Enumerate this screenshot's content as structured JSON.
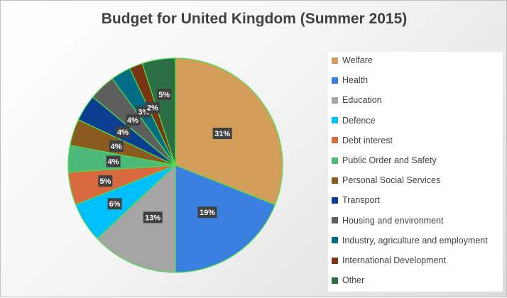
{
  "chart_data": {
    "type": "pie",
    "title": "Budget for United Kingdom (Summer 2015)",
    "categories": [
      "Welfare",
      "Health",
      "Education",
      "Defence",
      "Debt interest",
      "Public Order and Safety",
      "Personal Social Services",
      "Transport",
      "Housing and environment",
      "Industry, agriculture and employment",
      "International Development",
      "Other"
    ],
    "values": [
      31,
      19,
      13,
      6,
      5,
      4,
      4,
      4,
      4,
      3,
      2,
      5
    ],
    "data_labels": [
      "31%",
      "19%",
      "13%",
      "6%",
      "5%",
      "4%",
      "4%",
      "4%",
      "4%",
      "3%",
      "2%",
      "5%"
    ],
    "colors": [
      "#d39d5a",
      "#3b7fe0",
      "#a5a5a5",
      "#00bfff",
      "#d9693e",
      "#4cb87a",
      "#8a5a1e",
      "#0b3e8f",
      "#5e5e5e",
      "#006c86",
      "#7a3414",
      "#2d6f44"
    ],
    "slice_border_color": "#4ce04c",
    "legend_position": "right"
  }
}
